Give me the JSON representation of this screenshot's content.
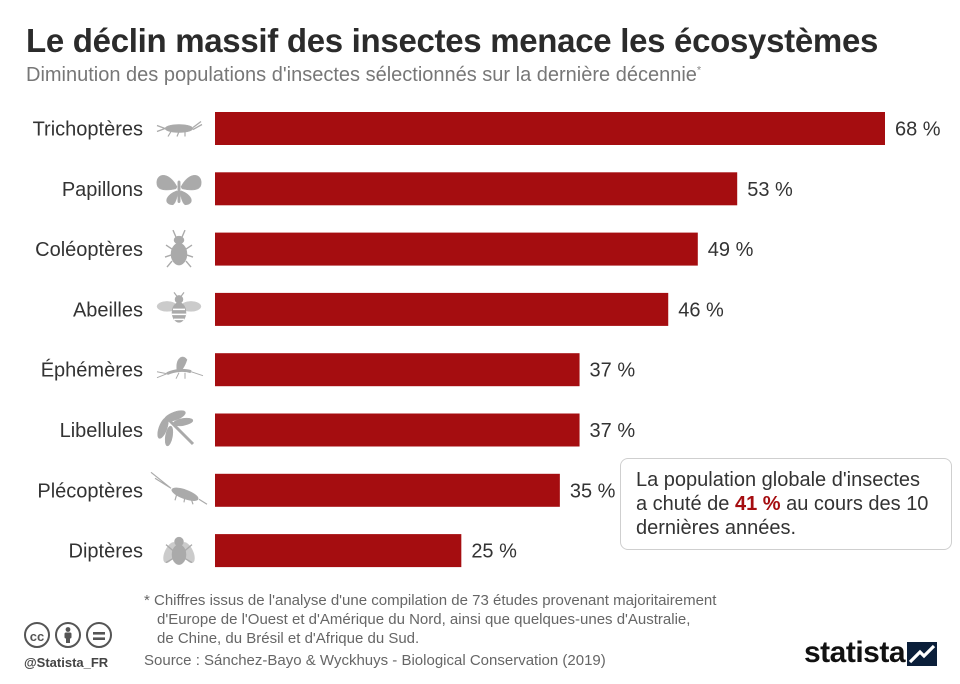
{
  "title": "Le déclin massif des insectes menace les écosystèmes",
  "subtitle": "Diminution des populations d'insectes sélectionnés sur la dernière décennie",
  "subtitle_mark": "*",
  "colors": {
    "bar": "#a50d10",
    "icon": "#aaaaaa",
    "accent": "#a50d10"
  },
  "chart_data": {
    "type": "bar",
    "orientation": "horizontal",
    "categories": [
      "Trichoptères",
      "Papillons",
      "Coléoptères",
      "Abeilles",
      "Éphémères",
      "Libellules",
      "Plécoptères",
      "Diptères"
    ],
    "values": [
      68,
      53,
      49,
      46,
      37,
      37,
      35,
      25
    ],
    "value_labels": [
      "68 %",
      "53 %",
      "49 %",
      "46 %",
      "37 %",
      "37 %",
      "35 %",
      "25 %"
    ],
    "icons": [
      "caddisfly-icon",
      "butterfly-icon",
      "beetle-icon",
      "bee-icon",
      "mayfly-icon",
      "dragonfly-icon",
      "stonefly-icon",
      "fly-icon"
    ],
    "xlim": [
      0,
      68
    ],
    "grid": false,
    "legend": "none"
  },
  "callout": {
    "text_before": "La population globale d'insectes a chuté de ",
    "highlight": "41 %",
    "text_after": " au cours des 10 dernières années."
  },
  "footnote": {
    "line1": "* Chiffres issus de l'analyse d'une compilation de 73 études provenant majoritairement",
    "line2": "d'Europe de l'Ouest et d'Amérique du Nord, ainsi que quelques-unes d'Australie,",
    "line3": "de Chine, du Brésil et d'Afrique du Sud."
  },
  "source": "Source : Sánchez-Bayo & Wyckhuys - Biological Conservation (2019)",
  "license_icons": [
    "cc-icon",
    "by-icon",
    "nd-icon"
  ],
  "handle": "@Statista_FR",
  "logo_text": "statista"
}
